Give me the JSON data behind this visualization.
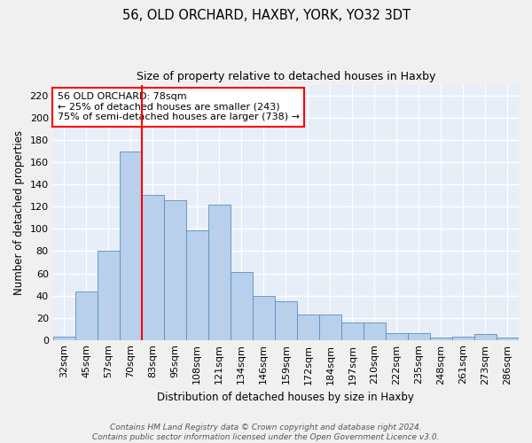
{
  "title": "56, OLD ORCHARD, HAXBY, YORK, YO32 3DT",
  "subtitle": "Size of property relative to detached houses in Haxby",
  "xlabel": "Distribution of detached houses by size in Haxby",
  "ylabel": "Number of detached properties",
  "categories": [
    "32sqm",
    "45sqm",
    "57sqm",
    "70sqm",
    "83sqm",
    "95sqm",
    "108sqm",
    "121sqm",
    "134sqm",
    "146sqm",
    "159sqm",
    "172sqm",
    "184sqm",
    "197sqm",
    "210sqm",
    "222sqm",
    "235sqm",
    "248sqm",
    "261sqm",
    "273sqm",
    "286sqm"
  ],
  "values": [
    3,
    44,
    80,
    170,
    131,
    126,
    99,
    122,
    61,
    40,
    35,
    23,
    23,
    16,
    16,
    6,
    6,
    2,
    3,
    5,
    2
  ],
  "bar_color": "#b8d0eb",
  "bar_edge_color": "#5a8fc0",
  "background_color": "#e8eef8",
  "grid_color": "#ffffff",
  "red_line_x": 3.5,
  "annotation_line1": "56 OLD ORCHARD: 78sqm",
  "annotation_line2": "← 25% of detached houses are smaller (243)",
  "annotation_line3": "75% of semi-detached houses are larger (738) →",
  "annotation_box_color": "white",
  "annotation_box_edge_color": "red",
  "ylim": [
    0,
    230
  ],
  "yticks": [
    0,
    20,
    40,
    60,
    80,
    100,
    120,
    140,
    160,
    180,
    200,
    220
  ],
  "footer": "Contains HM Land Registry data © Crown copyright and database right 2024.\nContains public sector information licensed under the Open Government Licence v3.0."
}
